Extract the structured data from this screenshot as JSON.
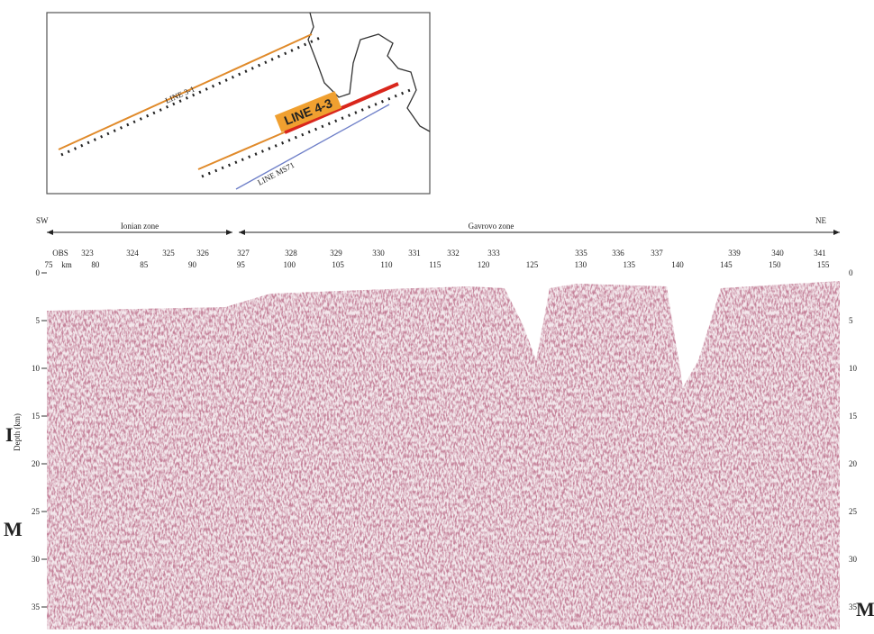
{
  "map": {
    "line_3_1": "LINE 3-1",
    "line_4_3": "LINE 4-3",
    "line_ms71": "LINE MS71"
  },
  "section": {
    "sw": "SW",
    "ne": "NE",
    "ionian_zone": "Ionian zone",
    "gavrovo_zone": "Gavrovo zone",
    "obs_header": "OBS",
    "km_header": "km",
    "km_start": "75",
    "obs": [
      "323",
      "324",
      "325",
      "326",
      "327",
      "328",
      "329",
      "330",
      "331",
      "332",
      "333",
      "335",
      "336",
      "337",
      "339",
      "340",
      "341"
    ],
    "km": [
      80,
      85,
      90,
      95,
      100,
      105,
      110,
      115,
      120,
      125,
      130,
      135,
      140,
      145,
      150,
      155
    ],
    "depth_label": "Depth (km)",
    "depth_ticks": [
      0,
      5,
      10,
      15,
      20,
      25,
      30,
      35
    ],
    "marker_i": "I",
    "marker_m_left": "M",
    "marker_m_right": "M"
  }
}
